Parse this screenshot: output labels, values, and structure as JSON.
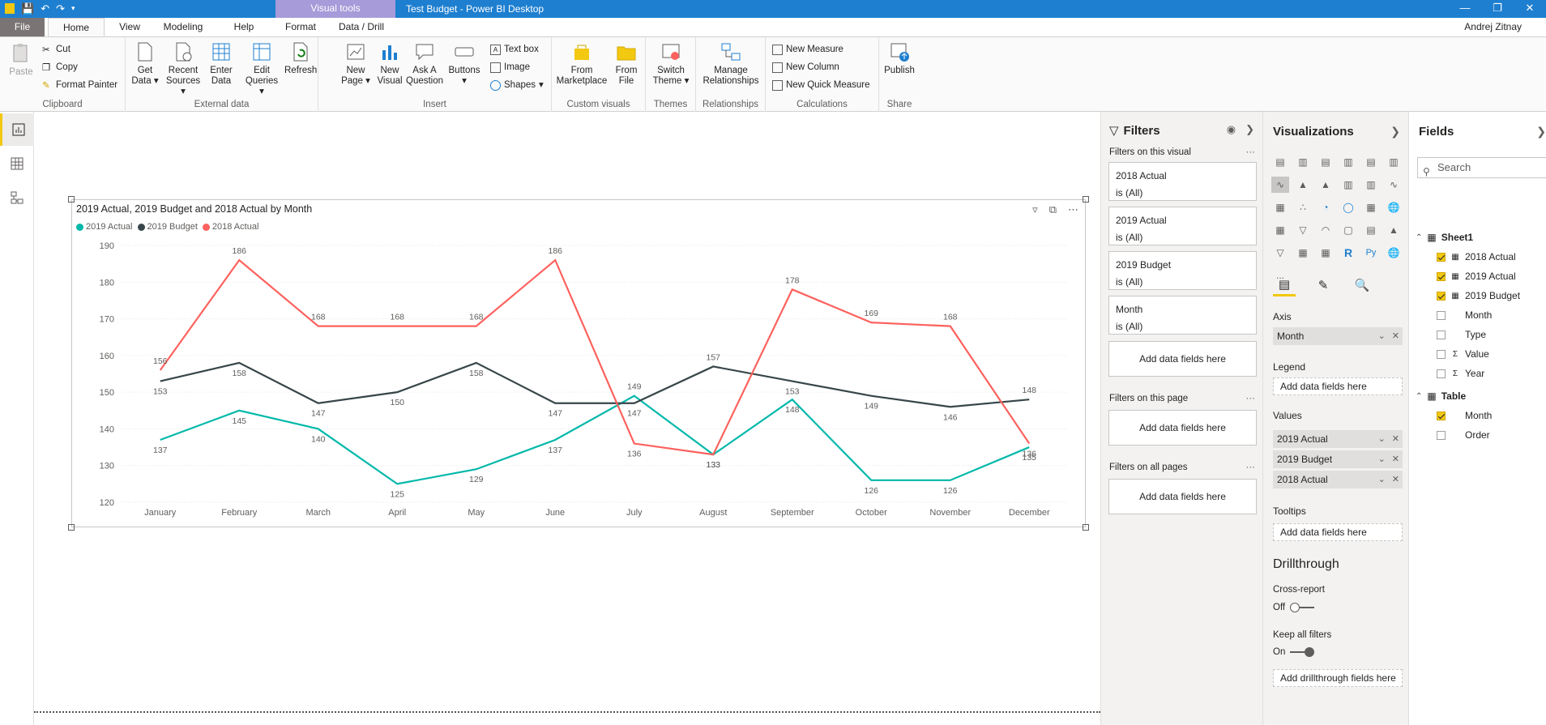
{
  "titlebar": {
    "context_tab": "Visual tools",
    "title": "Test Budget - Power BI Desktop"
  },
  "tabs": {
    "file": "File",
    "home": "Home",
    "view": "View",
    "modeling": "Modeling",
    "help": "Help",
    "format": "Format",
    "data_drill": "Data / Drill",
    "user": "Andrej Zitnay"
  },
  "ribbon": {
    "clipboard": {
      "paste": "Paste",
      "cut": "Cut",
      "copy": "Copy",
      "format_painter": "Format Painter",
      "label": "Clipboard"
    },
    "external": {
      "get_data": "Get Data",
      "recent_sources": "Recent Sources",
      "enter_data": "Enter Data",
      "edit_queries": "Edit Queries",
      "refresh": "Refresh",
      "label": "External data"
    },
    "insert": {
      "new_page": "New Page",
      "new_visual": "New Visual",
      "ask_question": "Ask A Question",
      "buttons": "Buttons",
      "text_box": "Text box",
      "image": "Image",
      "shapes": "Shapes",
      "label": "Insert"
    },
    "custom": {
      "from_marketplace": "From Marketplace",
      "from_file": "From File",
      "label": "Custom visuals"
    },
    "themes": {
      "switch_theme": "Switch Theme",
      "label": "Themes"
    },
    "relationships": {
      "manage": "Manage Relationships",
      "label": "Relationships"
    },
    "calculations": {
      "new_measure": "New Measure",
      "new_column": "New Column",
      "new_quick_measure": "New Quick Measure",
      "label": "Calculations"
    },
    "share": {
      "publish": "Publish",
      "label": "Share"
    }
  },
  "visual": {
    "title": "2019 Actual, 2019 Budget and 2018 Actual by Month",
    "legend": [
      "2019 Actual",
      "2019 Budget",
      "2018 Actual"
    ]
  },
  "chart_data": {
    "type": "line",
    "title": "2019 Actual, 2019 Budget and 2018 Actual by Month",
    "categories": [
      "January",
      "February",
      "March",
      "April",
      "May",
      "June",
      "July",
      "August",
      "September",
      "October",
      "November",
      "December"
    ],
    "series": [
      {
        "name": "2019 Actual",
        "color": "#01b8aa",
        "values": [
          137,
          145,
          140,
          125,
          129,
          137,
          149,
          133,
          148,
          126,
          126,
          135
        ]
      },
      {
        "name": "2019 Budget",
        "color": "#374649",
        "values": [
          153,
          158,
          147,
          150,
          158,
          147,
          147,
          157,
          153,
          149,
          146,
          148
        ]
      },
      {
        "name": "2018 Actual",
        "color": "#fd625e",
        "values": [
          156,
          186,
          168,
          168,
          168,
          186,
          136,
          133,
          178,
          169,
          168,
          136
        ]
      }
    ],
    "yticks": [
      120,
      130,
      140,
      150,
      160,
      170,
      180,
      190
    ],
    "ylim": [
      120,
      190
    ],
    "grid": true,
    "legend_position": "top-left"
  },
  "filters": {
    "title": "Filters",
    "on_visual": "Filters on this visual",
    "cards": [
      {
        "name": "2018 Actual",
        "state": "is (All)"
      },
      {
        "name": "2019 Actual",
        "state": "is (All)"
      },
      {
        "name": "2019 Budget",
        "state": "is (All)"
      },
      {
        "name": "Month",
        "state": "is (All)"
      }
    ],
    "add": "Add data fields here",
    "on_page": "Filters on this page",
    "on_all": "Filters on all pages",
    "more": "···"
  },
  "viz": {
    "title": "Visualizations",
    "axis": "Axis",
    "axis_field": "Month",
    "legend": "Legend",
    "add": "Add data fields here",
    "values": "Values",
    "value_fields": [
      "2019 Actual",
      "2019 Budget",
      "2018 Actual"
    ],
    "tooltips": "Tooltips",
    "drillthrough": "Drillthrough",
    "cross_report": "Cross-report",
    "off": "Off",
    "keep_filters": "Keep all filters",
    "on": "On",
    "add_drill": "Add drillthrough fields here",
    "more": "..."
  },
  "fields": {
    "title": "Fields",
    "search": "Search",
    "tables": [
      {
        "name": "Sheet1",
        "items": [
          {
            "label": "2018 Actual",
            "checked": true,
            "type": "calc"
          },
          {
            "label": "2019 Actual",
            "checked": true,
            "type": "calc"
          },
          {
            "label": "2019 Budget",
            "checked": true,
            "type": "calc"
          },
          {
            "label": "Month",
            "checked": false,
            "type": ""
          },
          {
            "label": "Type",
            "checked": false,
            "type": ""
          },
          {
            "label": "Value",
            "checked": false,
            "type": "sum"
          },
          {
            "label": "Year",
            "checked": false,
            "type": "sum"
          }
        ]
      },
      {
        "name": "Table",
        "items": [
          {
            "label": "Month",
            "checked": true,
            "type": ""
          },
          {
            "label": "Order",
            "checked": false,
            "type": ""
          }
        ]
      }
    ]
  }
}
